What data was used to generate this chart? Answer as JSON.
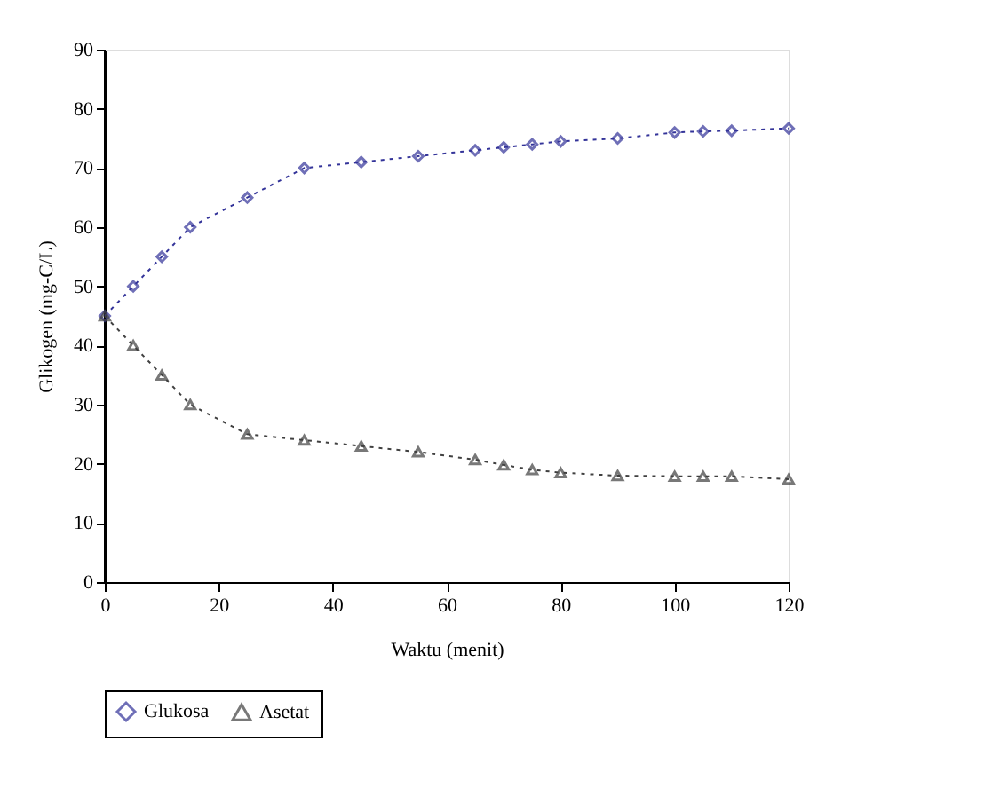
{
  "chart_data": {
    "type": "line",
    "xlabel": "Waktu (menit)",
    "ylabel": "Glikogen (mg-C/L)",
    "x": [
      0,
      5,
      10,
      15,
      25,
      35,
      45,
      55,
      65,
      70,
      75,
      80,
      90,
      100,
      105,
      110,
      120
    ],
    "series": [
      {
        "name": "Glukosa",
        "color": "#333399",
        "marker": "diamond",
        "values": [
          45,
          50,
          55,
          60,
          65,
          70,
          71,
          72,
          73,
          73.5,
          74,
          74.5,
          75,
          76,
          76.2,
          76.3,
          76.7
        ]
      },
      {
        "name": "Asetat",
        "color": "#404040",
        "marker": "triangle",
        "values": [
          45,
          40,
          35,
          30,
          25,
          24,
          23,
          22,
          20.7,
          19.8,
          19,
          18.5,
          18,
          17.9,
          17.9,
          17.9,
          17.4
        ]
      }
    ],
    "xlim": [
      0,
      120
    ],
    "xticks": [
      0,
      20,
      40,
      60,
      80,
      100,
      120
    ],
    "ylim": [
      0,
      90
    ],
    "yticks": [
      0,
      10,
      20,
      30,
      40,
      50,
      60,
      70,
      80,
      90
    ],
    "grid": false,
    "legend": "bottom",
    "line_style": "dotted"
  }
}
